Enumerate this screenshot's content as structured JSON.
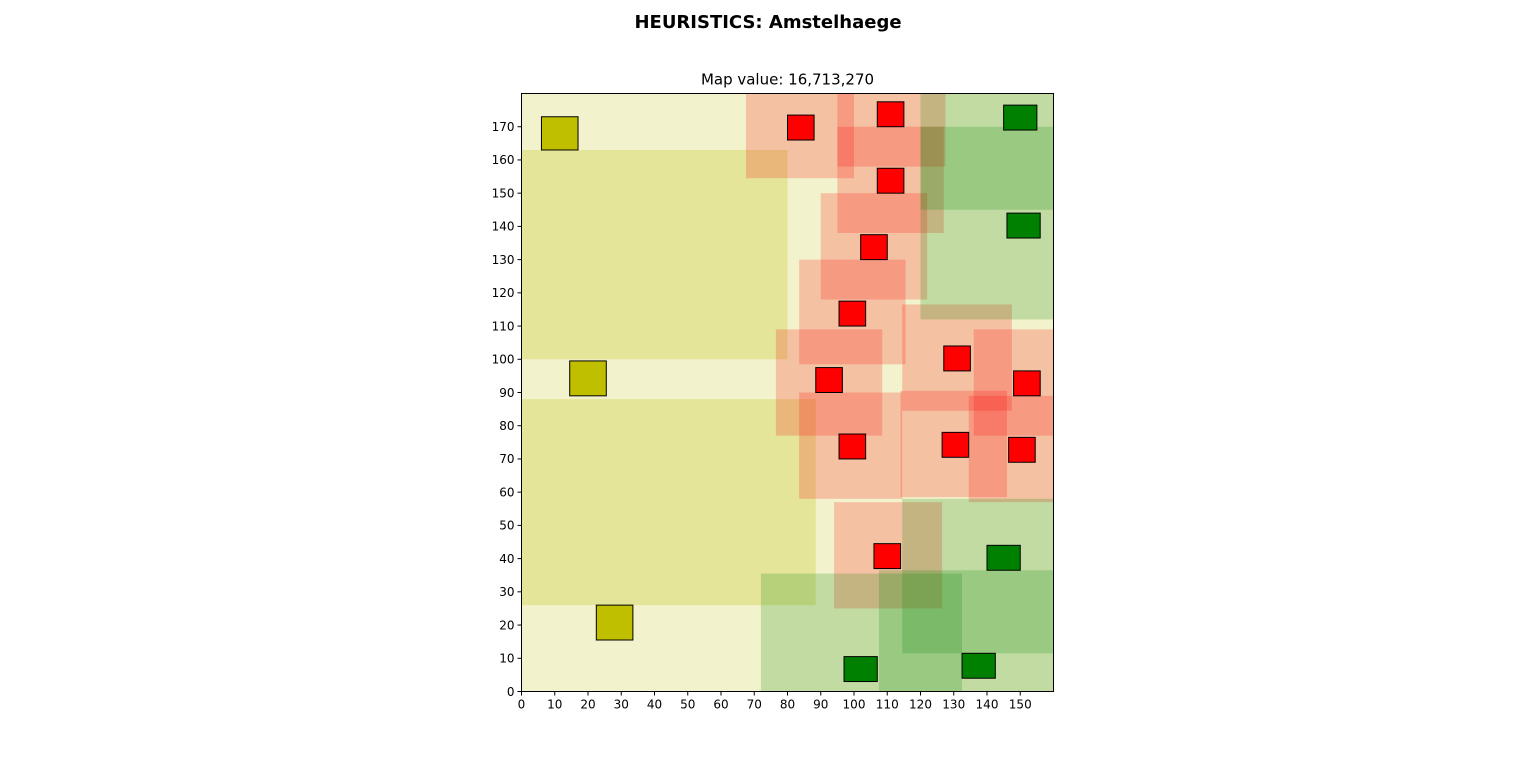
{
  "figure": {
    "suptitle": "HEURISTICS: Amstelhaege"
  },
  "chart_data": {
    "type": "map",
    "title": "Map value: 16,713,270",
    "xlim": [
      0,
      160
    ],
    "ylim": [
      0,
      180
    ],
    "xticks": [
      0,
      10,
      20,
      30,
      40,
      50,
      60,
      70,
      80,
      90,
      100,
      110,
      120,
      130,
      140,
      150
    ],
    "yticks": [
      0,
      10,
      20,
      30,
      40,
      50,
      60,
      70,
      80,
      90,
      100,
      110,
      120,
      130,
      140,
      150,
      160,
      170
    ],
    "grid": false,
    "legend": "none",
    "colors": {
      "yellow_house": "#bfbf00",
      "red_house": "#ff0000",
      "green_house": "#008000",
      "yellow_zone": "#bfbf00",
      "red_zone": "#ff0000",
      "green_zone": "#008000",
      "outline": "#000000"
    },
    "zones": [
      {
        "category": "yellow",
        "alpha": 0.2,
        "x": [
          0,
          160
        ],
        "y": [
          0,
          180
        ]
      },
      {
        "category": "yellow",
        "alpha": 0.25,
        "x": [
          0,
          80
        ],
        "y": [
          100,
          163
        ]
      },
      {
        "category": "yellow",
        "alpha": 0.25,
        "x": [
          0,
          88.5
        ],
        "y": [
          26,
          88
        ]
      },
      {
        "category": "red",
        "alpha": 0.2,
        "x": [
          67.5,
          100
        ],
        "y": [
          154.5,
          180
        ]
      },
      {
        "category": "red",
        "alpha": 0.2,
        "x": [
          95,
          127.5
        ],
        "y": [
          158,
          180
        ]
      },
      {
        "category": "red",
        "alpha": 0.2,
        "x": [
          95,
          127
        ],
        "y": [
          138,
          170
        ]
      },
      {
        "category": "red",
        "alpha": 0.2,
        "x": [
          90,
          122
        ],
        "y": [
          118,
          150
        ]
      },
      {
        "category": "red",
        "alpha": 0.2,
        "x": [
          83.5,
          115.5
        ],
        "y": [
          98.5,
          130
        ]
      },
      {
        "category": "red",
        "alpha": 0.2,
        "x": [
          76.5,
          108.5
        ],
        "y": [
          77,
          109
        ]
      },
      {
        "category": "red",
        "alpha": 0.2,
        "x": [
          83.5,
          114.5
        ],
        "y": [
          58,
          90
        ]
      },
      {
        "category": "red",
        "alpha": 0.2,
        "x": [
          114.5,
          147.5
        ],
        "y": [
          84.5,
          116.5
        ]
      },
      {
        "category": "red",
        "alpha": 0.2,
        "x": [
          136,
          160
        ],
        "y": [
          77,
          109
        ]
      },
      {
        "category": "red",
        "alpha": 0.2,
        "x": [
          114,
          146
        ],
        "y": [
          58.5,
          90.5
        ]
      },
      {
        "category": "red",
        "alpha": 0.2,
        "x": [
          134.5,
          160
        ],
        "y": [
          57,
          89
        ]
      },
      {
        "category": "red",
        "alpha": 0.2,
        "x": [
          94,
          126.5
        ],
        "y": [
          25,
          57
        ]
      },
      {
        "category": "green",
        "alpha": 0.2,
        "x": [
          120,
          160
        ],
        "y": [
          112,
          180
        ]
      },
      {
        "category": "green",
        "alpha": 0.2,
        "x": [
          120,
          160
        ],
        "y": [
          145,
          170
        ]
      },
      {
        "category": "green",
        "alpha": 0.2,
        "x": [
          72,
          132.5
        ],
        "y": [
          0,
          35.5
        ]
      },
      {
        "category": "green",
        "alpha": 0.2,
        "x": [
          107.5,
          160
        ],
        "y": [
          0,
          36.5
        ]
      },
      {
        "category": "green",
        "alpha": 0.2,
        "x": [
          114.5,
          160
        ],
        "y": [
          11.5,
          58
        ]
      }
    ],
    "houses": [
      {
        "category": "yellow",
        "x": [
          6,
          17
        ],
        "y": [
          163,
          173
        ]
      },
      {
        "category": "yellow",
        "x": [
          14.5,
          25.5
        ],
        "y": [
          89,
          99.5
        ]
      },
      {
        "category": "yellow",
        "x": [
          22.5,
          33.5
        ],
        "y": [
          15.5,
          26
        ]
      },
      {
        "category": "red",
        "x": [
          80,
          88
        ],
        "y": [
          166,
          173.5
        ]
      },
      {
        "category": "red",
        "x": [
          107,
          115
        ],
        "y": [
          170,
          177.5
        ]
      },
      {
        "category": "red",
        "x": [
          107,
          115
        ],
        "y": [
          150,
          157.5
        ]
      },
      {
        "category": "red",
        "x": [
          102,
          110
        ],
        "y": [
          130,
          137.5
        ]
      },
      {
        "category": "red",
        "x": [
          95.5,
          103.5
        ],
        "y": [
          110,
          117.5
        ]
      },
      {
        "category": "red",
        "x": [
          88.5,
          96.5
        ],
        "y": [
          90,
          97.5
        ]
      },
      {
        "category": "red",
        "x": [
          95.5,
          103.5
        ],
        "y": [
          70,
          77.5
        ]
      },
      {
        "category": "red",
        "x": [
          127,
          135
        ],
        "y": [
          96.5,
          104
        ]
      },
      {
        "category": "red",
        "x": [
          148,
          156
        ],
        "y": [
          89,
          96.5
        ]
      },
      {
        "category": "red",
        "x": [
          126.5,
          134.5
        ],
        "y": [
          70.5,
          78
        ]
      },
      {
        "category": "red",
        "x": [
          146.5,
          154.5
        ],
        "y": [
          69,
          76.5
        ]
      },
      {
        "category": "red",
        "x": [
          106,
          114
        ],
        "y": [
          37,
          44.5
        ]
      },
      {
        "category": "green",
        "x": [
          145,
          155
        ],
        "y": [
          169,
          176.5
        ]
      },
      {
        "category": "green",
        "x": [
          146,
          156
        ],
        "y": [
          136.5,
          144
        ]
      },
      {
        "category": "green",
        "x": [
          140,
          150
        ],
        "y": [
          36.5,
          44
        ]
      },
      {
        "category": "green",
        "x": [
          97,
          107
        ],
        "y": [
          3,
          10.5
        ]
      },
      {
        "category": "green",
        "x": [
          132.5,
          142.5
        ],
        "y": [
          4,
          11.5
        ]
      }
    ]
  }
}
